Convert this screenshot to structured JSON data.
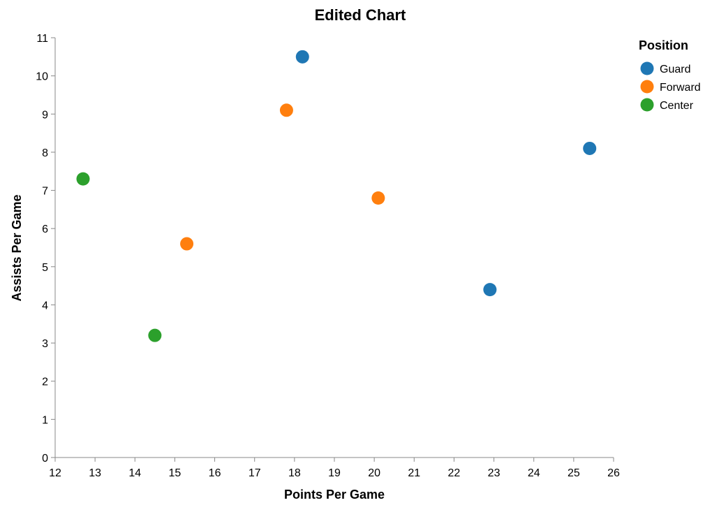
{
  "chart_data": {
    "type": "scatter",
    "title": "Edited Chart",
    "xlabel": "Points Per Game",
    "ylabel": "Assists Per Game",
    "xlim": [
      12,
      26
    ],
    "ylim": [
      0,
      11
    ],
    "x_ticks": [
      12,
      13,
      14,
      15,
      16,
      17,
      18,
      19,
      20,
      21,
      22,
      23,
      24,
      25,
      26
    ],
    "y_ticks": [
      0,
      1,
      2,
      3,
      4,
      5,
      6,
      7,
      8,
      9,
      10,
      11
    ],
    "grid": false,
    "legend": {
      "title": "Position",
      "placement": "top-right",
      "entries": [
        {
          "label": "Guard",
          "color": "#1f77b4"
        },
        {
          "label": "Forward",
          "color": "#ff7f0e"
        },
        {
          "label": "Center",
          "color": "#2ca02c"
        }
      ]
    },
    "series": [
      {
        "name": "Guard",
        "color": "#1f77b4",
        "points": [
          {
            "x": 18.2,
            "y": 10.5
          },
          {
            "x": 25.4,
            "y": 8.1
          },
          {
            "x": 22.9,
            "y": 4.4
          }
        ]
      },
      {
        "name": "Forward",
        "color": "#ff7f0e",
        "points": [
          {
            "x": 17.8,
            "y": 9.1
          },
          {
            "x": 20.1,
            "y": 6.8
          },
          {
            "x": 15.3,
            "y": 5.6
          }
        ]
      },
      {
        "name": "Center",
        "color": "#2ca02c",
        "points": [
          {
            "x": 12.7,
            "y": 7.3
          },
          {
            "x": 14.5,
            "y": 3.2
          }
        ]
      }
    ]
  }
}
